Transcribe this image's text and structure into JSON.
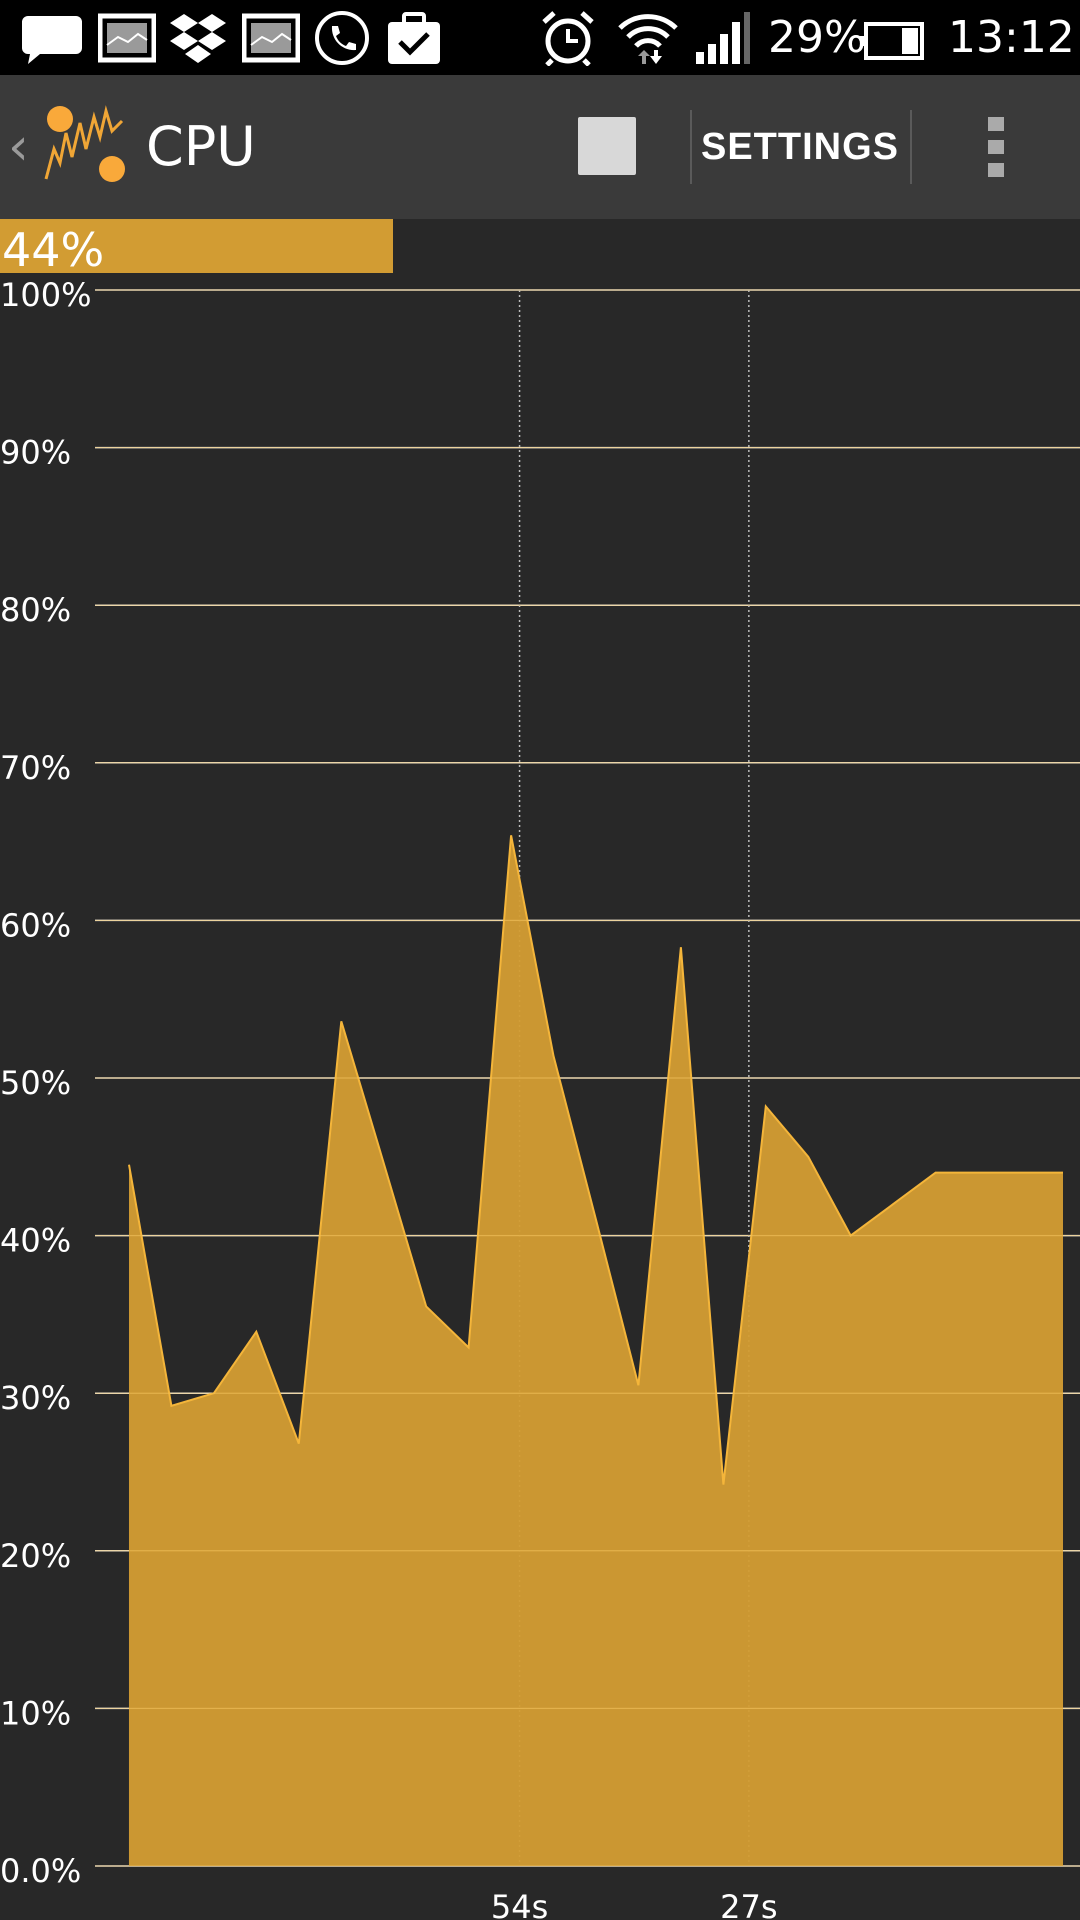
{
  "status_bar": {
    "battery_text": "29%",
    "time": "13:12",
    "icons": [
      "chat-bubble-icon",
      "gallery-icon",
      "dropbox-icon",
      "gallery-icon",
      "phone-icon",
      "task-icon",
      "alarm-icon",
      "wifi-icon",
      "signal-icon",
      "battery-icon"
    ]
  },
  "action_bar": {
    "title": "CPU",
    "settings_label": "SETTINGS",
    "icons": [
      "back-chevron-icon",
      "app-logo-icon",
      "stop-icon",
      "overflow-menu-icon"
    ]
  },
  "usage": {
    "label": "44%",
    "fraction": 0.44,
    "color": "#d29c33"
  },
  "colors": {
    "background": "#282828",
    "action_bar": "#3a3a3a",
    "fill": "#d29c33",
    "line": "#f4b53a"
  },
  "chart_data": {
    "type": "area",
    "title": "",
    "xlabel": "",
    "ylabel": "",
    "ylim": [
      0,
      100
    ],
    "y_ticks": [
      {
        "value": 0,
        "label": "0.0%"
      },
      {
        "value": 10,
        "label": "10%"
      },
      {
        "value": 20,
        "label": "20%"
      },
      {
        "value": 30,
        "label": "30%"
      },
      {
        "value": 40,
        "label": "40%"
      },
      {
        "value": 50,
        "label": "50%"
      },
      {
        "value": 60,
        "label": "60%"
      },
      {
        "value": 70,
        "label": "70%"
      },
      {
        "value": 80,
        "label": "80%"
      },
      {
        "value": 90,
        "label": "90%"
      },
      {
        "value": 100,
        "label": "100%"
      }
    ],
    "x_ticks": [
      {
        "value": 54,
        "label": "54s"
      },
      {
        "value": 27,
        "label": "27s"
      }
    ],
    "xlim": [
      104,
      -12
    ],
    "x_unit": "seconds ago",
    "grid": true,
    "series": [
      {
        "x": [
          100,
          95,
          90,
          85,
          80,
          75,
          70,
          65,
          60,
          55,
          50,
          45,
          40,
          35,
          30,
          25,
          20,
          15,
          10,
          5,
          0,
          -5,
          -10
        ],
        "y": [
          44.5,
          29.2,
          30.0,
          33.9,
          26.8,
          53.6,
          44.6,
          35.5,
          32.9,
          65.4,
          51.4,
          41.0,
          30.5,
          58.3,
          24.2,
          48.2,
          45.0,
          40.0,
          42.0,
          44.0,
          44.0,
          44.0,
          44.0
        ]
      }
    ]
  }
}
